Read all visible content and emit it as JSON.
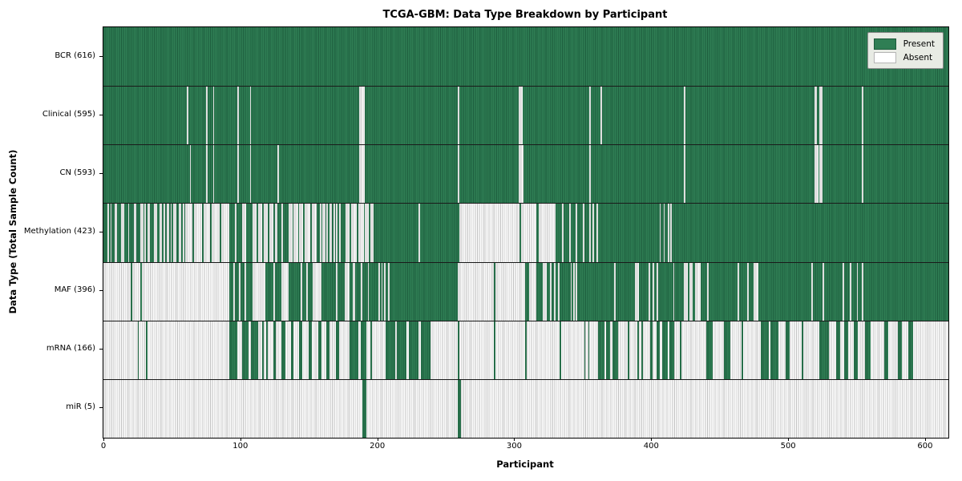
{
  "chart": {
    "title": "TCGA-GBM: Data Type Breakdown by Participant",
    "xlabel": "Participant",
    "ylabel": "Data Type (Total Sample Count)",
    "legend": {
      "present": "Present",
      "absent": "Absent"
    }
  },
  "colors": {
    "present": "#2f7e54",
    "present_dark": "#1e5e3e",
    "absent": "#fcfcfc",
    "absent_stripe": "#c2c2c2",
    "legend_bg": "#e8ebe4",
    "axis": "#000000"
  },
  "chart_data": {
    "type": "heatmap",
    "title": "TCGA-GBM: Data Type Breakdown by Participant",
    "xlabel": "Participant",
    "ylabel": "Data Type (Total Sample Count)",
    "legend": [
      {
        "label": "Present",
        "color": "#2f7e54"
      },
      {
        "label": "Absent",
        "color": "#ffffff"
      }
    ],
    "legend_position": "upper right",
    "grid": false,
    "n_participants": 616,
    "x_ticks": [
      0,
      100,
      200,
      300,
      400,
      500,
      600
    ],
    "x_max": 617,
    "rows_note": "Each row is a binary presence strip over participants 0-616. 'base' is the dominant state; 'runs' are [start,end) participant ranges of the OPPOSITE state (approximate, read from pixels).",
    "rows": [
      {
        "name": "bcr",
        "label": "BCR (616)",
        "total": 616,
        "base": "present",
        "runs": []
      },
      {
        "name": "clinical",
        "label": "Clinical (595)",
        "total": 595,
        "base": "present",
        "runs": [
          [
            61,
            62
          ],
          [
            75,
            76
          ],
          [
            80,
            81
          ],
          [
            98,
            99
          ],
          [
            107,
            108
          ],
          [
            187,
            191
          ],
          [
            259,
            260
          ],
          [
            303,
            306
          ],
          [
            355,
            356
          ],
          [
            363,
            364
          ],
          [
            424,
            425
          ],
          [
            519,
            521
          ],
          [
            523,
            525
          ],
          [
            554,
            555
          ]
        ]
      },
      {
        "name": "cn",
        "label": "CN (593)",
        "total": 593,
        "base": "present",
        "runs": [
          [
            63,
            64
          ],
          [
            75,
            76
          ],
          [
            80,
            81
          ],
          [
            98,
            99
          ],
          [
            107,
            108
          ],
          [
            127,
            128
          ],
          [
            187,
            191
          ],
          [
            259,
            260
          ],
          [
            303,
            307
          ],
          [
            355,
            356
          ],
          [
            424,
            425
          ],
          [
            519,
            522
          ],
          [
            523,
            525
          ],
          [
            554,
            555
          ]
        ]
      },
      {
        "name": "methylation",
        "label": "Methylation (423)",
        "total": 423,
        "base": "present",
        "runs": [
          [
            3,
            4
          ],
          [
            5,
            6
          ],
          [
            8,
            10
          ],
          [
            13,
            15
          ],
          [
            18,
            19
          ],
          [
            22,
            24
          ],
          [
            27,
            29
          ],
          [
            30,
            31
          ],
          [
            32,
            34
          ],
          [
            37,
            39
          ],
          [
            41,
            43
          ],
          [
            44,
            45
          ],
          [
            46,
            48
          ],
          [
            49,
            50
          ],
          [
            51,
            53
          ],
          [
            55,
            57
          ],
          [
            58,
            59
          ],
          [
            60,
            65
          ],
          [
            66,
            72
          ],
          [
            73,
            78
          ],
          [
            79,
            85
          ],
          [
            86,
            92
          ],
          [
            96,
            97
          ],
          [
            101,
            104
          ],
          [
            109,
            112
          ],
          [
            113,
            116
          ],
          [
            117,
            120
          ],
          [
            121,
            124
          ],
          [
            125,
            127
          ],
          [
            130,
            131
          ],
          [
            135,
            138
          ],
          [
            139,
            142
          ],
          [
            143,
            146
          ],
          [
            147,
            151
          ],
          [
            152,
            156
          ],
          [
            158,
            159
          ],
          [
            160,
            162
          ],
          [
            163,
            164
          ],
          [
            165,
            167
          ],
          [
            168,
            169
          ],
          [
            170,
            171
          ],
          [
            172,
            173
          ],
          [
            177,
            180
          ],
          [
            181,
            185
          ],
          [
            186,
            190
          ],
          [
            191,
            194
          ],
          [
            195,
            197
          ],
          [
            230,
            231
          ],
          [
            260,
            304
          ],
          [
            305,
            316
          ],
          [
            318,
            330
          ],
          [
            335,
            336
          ],
          [
            340,
            341
          ],
          [
            345,
            346
          ],
          [
            350,
            351
          ],
          [
            355,
            356
          ],
          [
            357,
            358
          ],
          [
            360,
            361
          ],
          [
            406,
            407
          ],
          [
            409,
            410
          ],
          [
            412,
            413
          ],
          [
            414,
            415
          ]
        ]
      },
      {
        "name": "maf",
        "label": "MAF (396)",
        "total": 396,
        "base": "present",
        "runs": [
          [
            0,
            20
          ],
          [
            21,
            27
          ],
          [
            28,
            92
          ],
          [
            95,
            96
          ],
          [
            99,
            100
          ],
          [
            103,
            104
          ],
          [
            109,
            118
          ],
          [
            124,
            125
          ],
          [
            130,
            135
          ],
          [
            144,
            145
          ],
          [
            148,
            149
          ],
          [
            153,
            159
          ],
          [
            170,
            171
          ],
          [
            176,
            180
          ],
          [
            182,
            184
          ],
          [
            188,
            189
          ],
          [
            193,
            194
          ],
          [
            201,
            202
          ],
          [
            203,
            204
          ],
          [
            205,
            206
          ],
          [
            208,
            209
          ],
          [
            259,
            285
          ],
          [
            286,
            308
          ],
          [
            311,
            316
          ],
          [
            321,
            324
          ],
          [
            326,
            327
          ],
          [
            329,
            330
          ],
          [
            332,
            333
          ],
          [
            341,
            342
          ],
          [
            343,
            344
          ],
          [
            345,
            346
          ],
          [
            373,
            374
          ],
          [
            388,
            391
          ],
          [
            398,
            399
          ],
          [
            401,
            402
          ],
          [
            404,
            405
          ],
          [
            416,
            417
          ],
          [
            424,
            427
          ],
          [
            428,
            430
          ],
          [
            432,
            436
          ],
          [
            441,
            442
          ],
          [
            463,
            464
          ],
          [
            470,
            471
          ],
          [
            475,
            478
          ],
          [
            517,
            518
          ],
          [
            525,
            526
          ],
          [
            540,
            541
          ],
          [
            545,
            546
          ],
          [
            550,
            551
          ],
          [
            554,
            555
          ]
        ]
      },
      {
        "name": "mrna",
        "label": "mRNA (166)",
        "total": 166,
        "base": "absent",
        "runs": [
          [
            25,
            26
          ],
          [
            31,
            32
          ],
          [
            92,
            98
          ],
          [
            101,
            106
          ],
          [
            108,
            113
          ],
          [
            116,
            117
          ],
          [
            119,
            120
          ],
          [
            124,
            126
          ],
          [
            130,
            133
          ],
          [
            137,
            139
          ],
          [
            143,
            145
          ],
          [
            150,
            152
          ],
          [
            157,
            159
          ],
          [
            163,
            165
          ],
          [
            170,
            172
          ],
          [
            180,
            186
          ],
          [
            188,
            192
          ],
          [
            195,
            196
          ],
          [
            206,
            213
          ],
          [
            214,
            221
          ],
          [
            223,
            230
          ],
          [
            232,
            239
          ],
          [
            259,
            260
          ],
          [
            285,
            286
          ],
          [
            308,
            309
          ],
          [
            333,
            334
          ],
          [
            351,
            352
          ],
          [
            354,
            355
          ],
          [
            361,
            366
          ],
          [
            367,
            370
          ],
          [
            372,
            376
          ],
          [
            383,
            384
          ],
          [
            390,
            391
          ],
          [
            393,
            394
          ],
          [
            399,
            401
          ],
          [
            404,
            406
          ],
          [
            408,
            412
          ],
          [
            413,
            417
          ],
          [
            421,
            422
          ],
          [
            440,
            445
          ],
          [
            453,
            458
          ],
          [
            466,
            467
          ],
          [
            480,
            486
          ],
          [
            487,
            493
          ],
          [
            498,
            501
          ],
          [
            510,
            511
          ],
          [
            523,
            530
          ],
          [
            535,
            538
          ],
          [
            541,
            544
          ],
          [
            548,
            551
          ],
          [
            556,
            560
          ],
          [
            570,
            573
          ],
          [
            580,
            583
          ],
          [
            588,
            591
          ]
        ]
      },
      {
        "name": "mir",
        "label": "miR (5)",
        "total": 5,
        "base": "absent",
        "runs": [
          [
            189,
            192
          ],
          [
            259,
            261
          ]
        ]
      }
    ]
  }
}
